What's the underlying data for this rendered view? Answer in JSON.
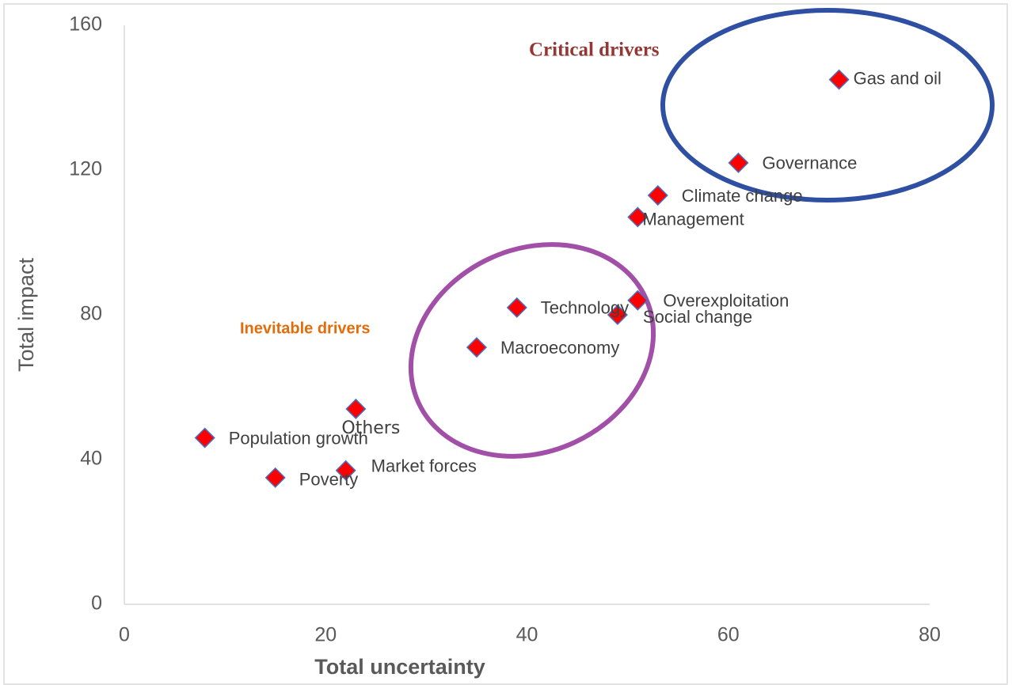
{
  "chart_data": {
    "type": "scatter",
    "x_label": "Total uncertainty",
    "y_label": "Total impact",
    "annotations": [
      "Critical drivers",
      "Inevitable drivers"
    ],
    "labels": [
      "Gas and oil",
      "Governance",
      "Climate change",
      "Management",
      "Overexploitation",
      "Social change",
      "Technology",
      "Macroeconomy",
      "Others",
      "Population growth",
      "Market forces",
      "Poverty"
    ],
    "x": [
      71,
      61,
      53,
      51,
      51,
      49,
      39,
      35,
      23,
      8,
      22,
      15
    ],
    "values": [
      145,
      122,
      113,
      107,
      84,
      80,
      82,
      71,
      54,
      46,
      37,
      35
    ],
    "color": "#ff0000",
    "xlim": [
      0,
      80
    ],
    "xticks": [
      0,
      20,
      40,
      60,
      80
    ],
    "ylim": [
      0,
      160
    ],
    "yticks": [
      0,
      40,
      80,
      120,
      160
    ],
    "grid": false
  }
}
